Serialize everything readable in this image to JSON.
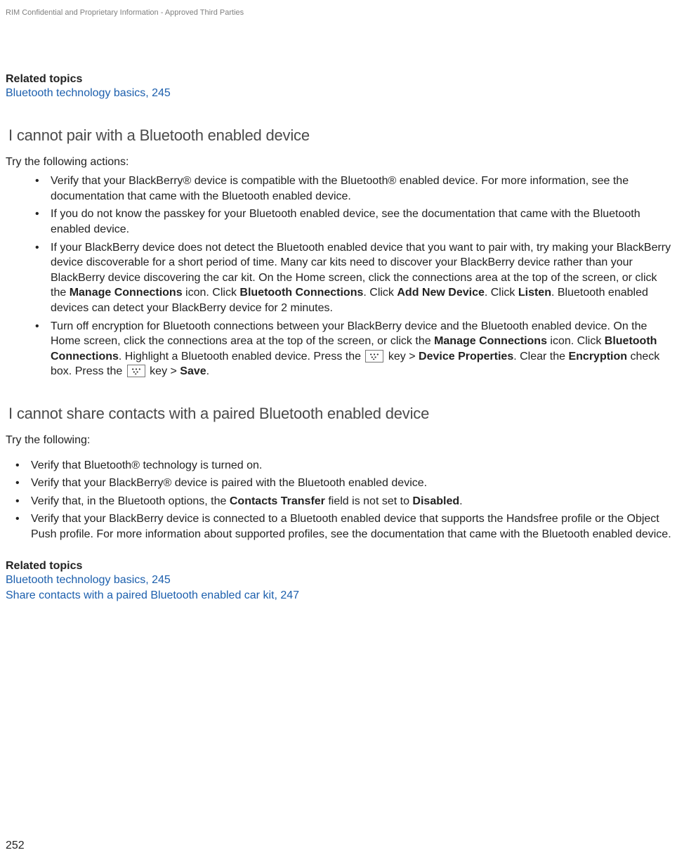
{
  "header": {
    "confidential": "RIM Confidential and Proprietary Information - Approved Third Parties"
  },
  "related1": {
    "label": "Related topics",
    "link1": "Bluetooth technology basics, 245"
  },
  "section1": {
    "title": "I cannot pair with a Bluetooth enabled device",
    "intro": "Try the following actions:",
    "b1": "Verify that your BlackBerry® device is compatible with the Bluetooth® enabled device. For more information, see the documentation that came with the Bluetooth enabled device.",
    "b2": "If you do not know the passkey for your Bluetooth enabled device, see the documentation that came with the Bluetooth enabled device.",
    "b3_p1": "If your BlackBerry device does not detect the Bluetooth enabled device that you want to pair with, try making your BlackBerry device discoverable for a short period of time. Many car kits need to discover your BlackBerry device rather than your BlackBerry device discovering the car kit. On the Home screen, click the connections area at the top of the screen, or click the ",
    "b3_mc": "Manage Connections",
    "b3_p2": " icon. Click ",
    "b3_bc": "Bluetooth Connections",
    "b3_p3": ". Click ",
    "b3_and": "Add New Device",
    "b3_p4": ". Click ",
    "b3_listen": "Listen",
    "b3_p5": ". Bluetooth enabled devices can detect your BlackBerry device for 2 minutes.",
    "b4_p1": "Turn off encryption for Bluetooth connections between your BlackBerry device and the Bluetooth enabled device. On the Home screen, click the connections area at the top of the screen, or click the ",
    "b4_mc": "Manage Connections",
    "b4_p2": " icon. Click ",
    "b4_bc": "Bluetooth Connections",
    "b4_p3": ". Highlight a Bluetooth enabled device. Press the ",
    "b4_keygt1": " key > ",
    "b4_dp": "Device Properties",
    "b4_p4": ". Clear the ",
    "b4_enc": "Encryption",
    "b4_p5": " check box. Press the ",
    "b4_keygt2": " key > ",
    "b4_save": "Save",
    "b4_p6": "."
  },
  "section2": {
    "title": "I cannot share contacts with a paired Bluetooth enabled device",
    "intro": "Try the following:",
    "b1": "Verify that Bluetooth® technology is turned on.",
    "b2": "Verify that your BlackBerry® device is paired with the Bluetooth enabled device.",
    "b3_p1": "Verify that, in the Bluetooth options, the ",
    "b3_ct": "Contacts Transfer",
    "b3_p2": " field is not set to ",
    "b3_dis": "Disabled",
    "b3_p3": ".",
    "b4": "Verify that your BlackBerry device is connected to a Bluetooth enabled device that supports the Handsfree profile or the Object Push profile. For more information about supported profiles, see the documentation that came with the Bluetooth enabled device."
  },
  "related2": {
    "label": "Related topics",
    "link1": "Bluetooth technology basics, 245",
    "link2": "Share contacts with a paired Bluetooth enabled car kit, 247"
  },
  "footer": {
    "page": "252"
  }
}
